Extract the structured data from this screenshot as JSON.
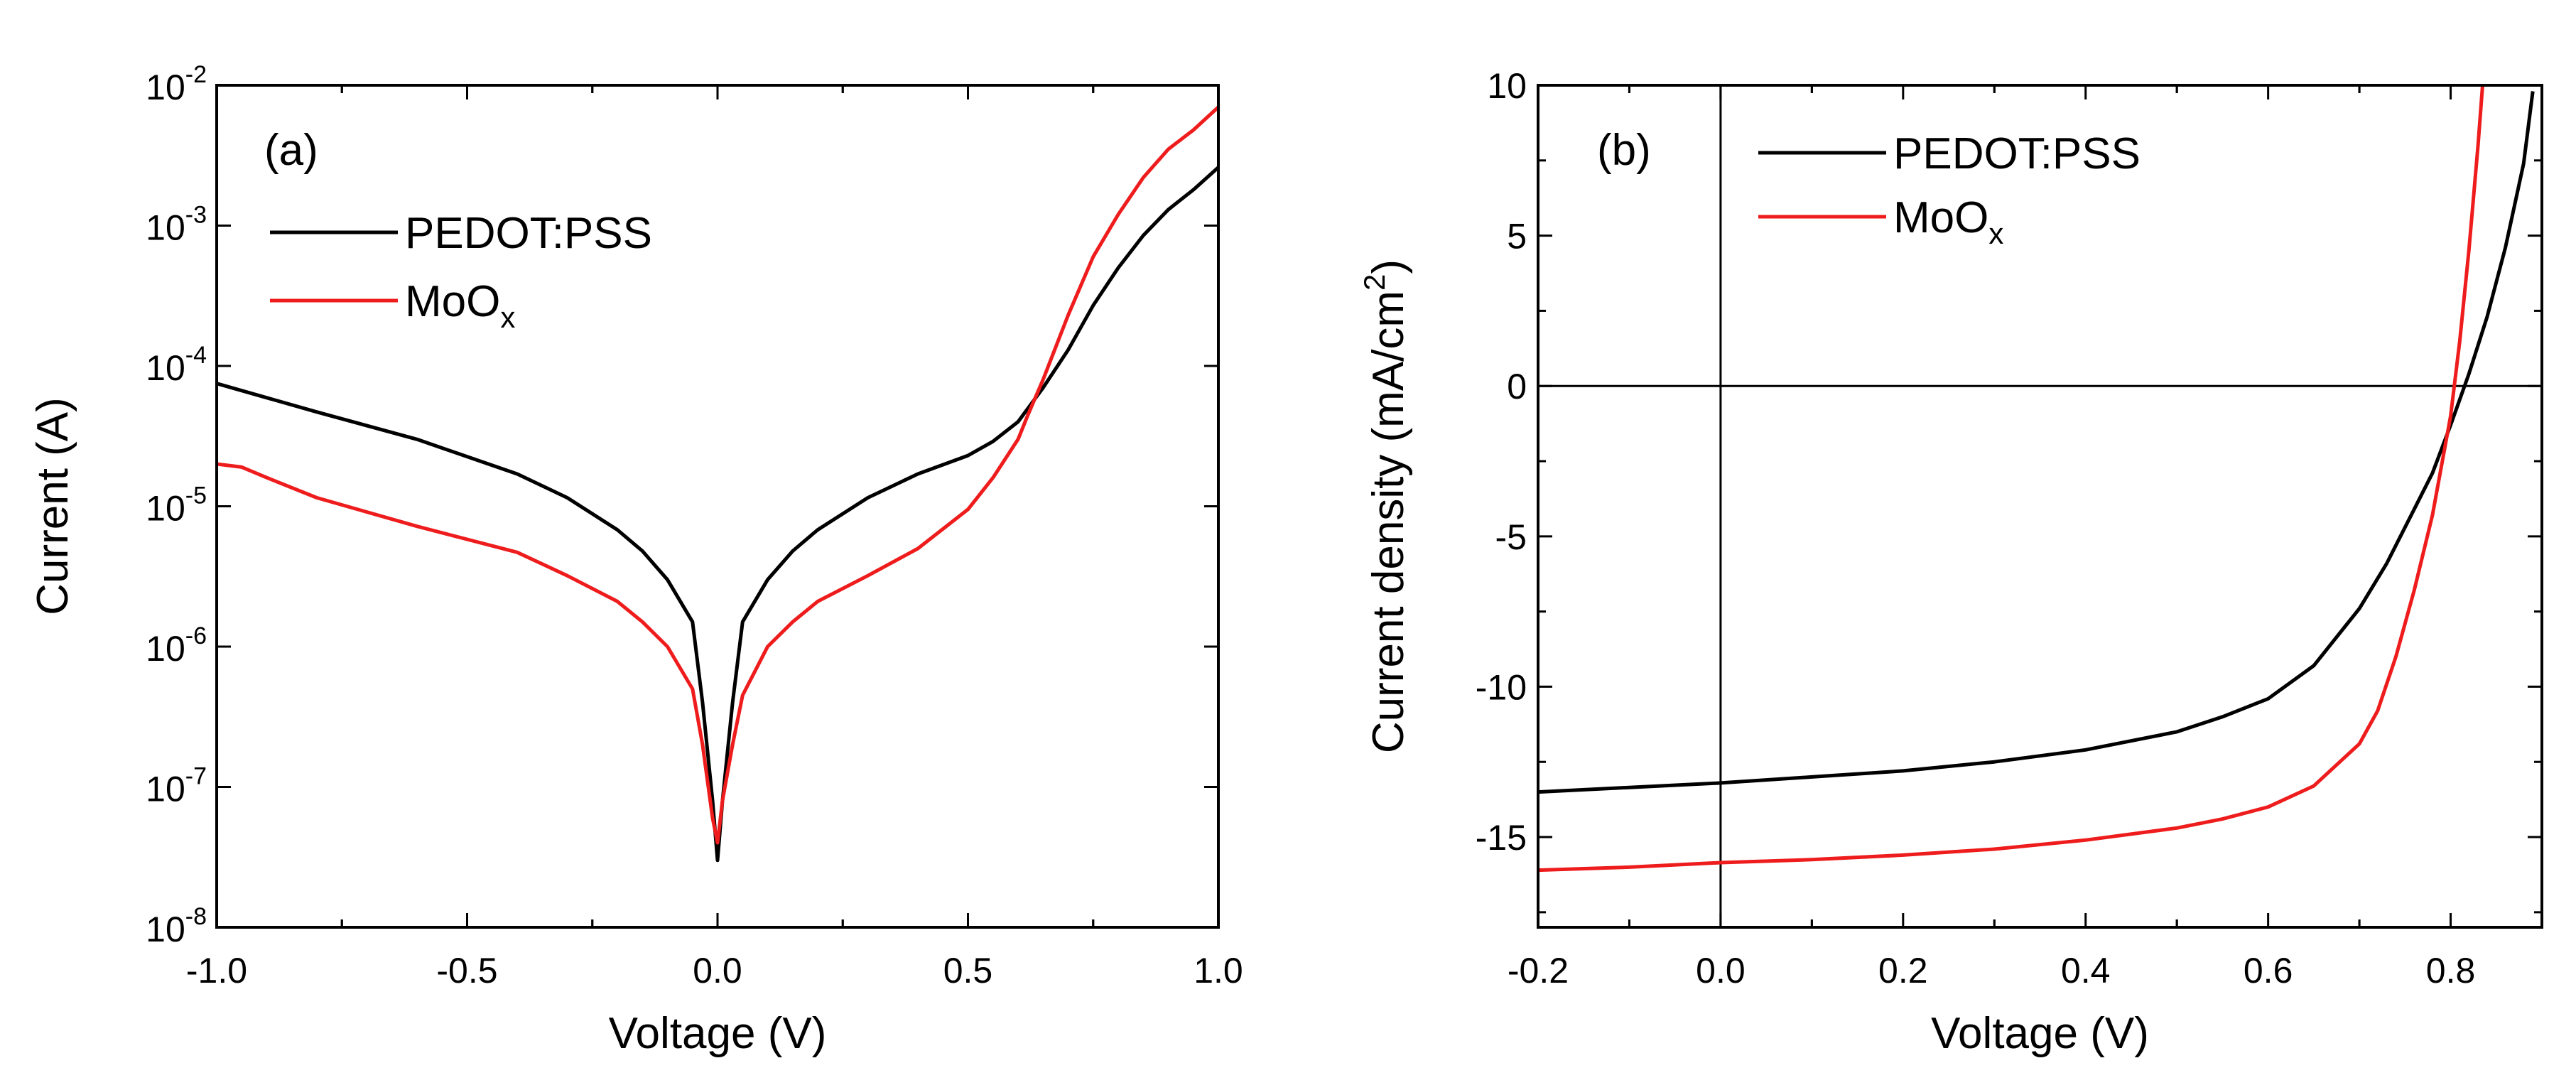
{
  "colors": {
    "pedot": "#000000",
    "moox": "#ee1c1c",
    "axis": "#000000"
  },
  "chart_data": [
    {
      "id": "a",
      "type": "line",
      "panel_label": "(a)",
      "xlabel": "Voltage (V)",
      "ylabel": "Current (A)",
      "yscale": "log",
      "xlim": [
        -1.0,
        1.0
      ],
      "ylim": [
        1e-08,
        0.01
      ],
      "xticks": [
        -1.0,
        -0.5,
        0.0,
        0.5,
        1.0
      ],
      "xtick_labels": [
        "-1.0",
        "-0.5",
        "0.0",
        "0.5",
        "1.0"
      ],
      "yticks": [
        1e-08,
        1e-07,
        1e-06,
        1e-05,
        0.0001,
        0.001,
        0.01
      ],
      "ytick_labels": [
        {
          "base": "10",
          "exp": "-8"
        },
        {
          "base": "10",
          "exp": "-7"
        },
        {
          "base": "10",
          "exp": "-6"
        },
        {
          "base": "10",
          "exp": "-5"
        },
        {
          "base": "10",
          "exp": "-4"
        },
        {
          "base": "10",
          "exp": "-3"
        },
        {
          "base": "10",
          "exp": "-2"
        }
      ],
      "legend_position": "top-left",
      "series": [
        {
          "name": "PEDOT:PSS",
          "legend_main": "PEDOT:PSS",
          "legend_sub": "",
          "color_key": "pedot",
          "x": [
            -1.0,
            -0.8,
            -0.6,
            -0.4,
            -0.3,
            -0.2,
            -0.15,
            -0.1,
            -0.05,
            -0.03,
            -0.01,
            0.0,
            0.01,
            0.03,
            0.05,
            0.1,
            0.15,
            0.2,
            0.3,
            0.4,
            0.5,
            0.55,
            0.6,
            0.62,
            0.65,
            0.7,
            0.75,
            0.8,
            0.85,
            0.9,
            0.95,
            1.0
          ],
          "y": [
            7.5e-05,
            4.7e-05,
            3e-05,
            1.7e-05,
            1.15e-05,
            6.8e-06,
            4.8e-06,
            3e-06,
            1.5e-06,
            4e-07,
            8e-08,
            3e-08,
            8e-08,
            4e-07,
            1.5e-06,
            3e-06,
            4.8e-06,
            6.8e-06,
            1.15e-05,
            1.7e-05,
            2.3e-05,
            2.9e-05,
            4e-05,
            5e-05,
            7e-05,
            0.00013,
            0.00027,
            0.0005,
            0.00085,
            0.0013,
            0.0018,
            0.0026
          ]
        },
        {
          "name": "MoOx",
          "legend_main": "MoO",
          "legend_sub": "x",
          "color_key": "moox",
          "x": [
            -1.0,
            -0.95,
            -0.9,
            -0.8,
            -0.6,
            -0.4,
            -0.3,
            -0.2,
            -0.15,
            -0.1,
            -0.05,
            -0.03,
            -0.01,
            0.0,
            0.01,
            0.03,
            0.05,
            0.1,
            0.15,
            0.2,
            0.3,
            0.4,
            0.5,
            0.55,
            0.6,
            0.62,
            0.65,
            0.7,
            0.75,
            0.8,
            0.85,
            0.9,
            0.95,
            1.0
          ],
          "y": [
            2e-05,
            1.9e-05,
            1.6e-05,
            1.15e-05,
            7.2e-06,
            4.7e-06,
            3.2e-06,
            2.1e-06,
            1.5e-06,
            1e-06,
            5e-07,
            2e-07,
            6e-08,
            4e-08,
            8e-08,
            2e-07,
            4.5e-07,
            1e-06,
            1.5e-06,
            2.1e-06,
            3.2e-06,
            5e-06,
            9.5e-06,
            1.6e-05,
            3e-05,
            4.5e-05,
            8e-05,
            0.00023,
            0.0006,
            0.0012,
            0.0022,
            0.0035,
            0.0048,
            0.007
          ]
        }
      ]
    },
    {
      "id": "b",
      "type": "line",
      "panel_label": "(b)",
      "xlabel": "Voltage (V)",
      "ylabel_main": "Current density (mA/cm",
      "ylabel_sup": "2",
      "ylabel_end": ")",
      "yscale": "linear",
      "xlim": [
        -0.2,
        0.9
      ],
      "ylim": [
        -18,
        10
      ],
      "xticks": [
        -0.2,
        0.0,
        0.2,
        0.4,
        0.6,
        0.8
      ],
      "xtick_labels": [
        "-0.2",
        "0.0",
        "0.2",
        "0.4",
        "0.6",
        "0.8"
      ],
      "yticks": [
        -15,
        -10,
        -5,
        0,
        5,
        10
      ],
      "ytick_labels": [
        "-15",
        "-10",
        "-5",
        "0",
        "5",
        "10"
      ],
      "reference_lines": {
        "x": 0.0,
        "y": 0.0
      },
      "legend_position": "top-left",
      "series": [
        {
          "name": "PEDOT:PSS",
          "legend_main": "PEDOT:PSS",
          "legend_sub": "",
          "color_key": "pedot",
          "x": [
            -0.2,
            -0.1,
            0.0,
            0.1,
            0.2,
            0.3,
            0.4,
            0.5,
            0.55,
            0.6,
            0.65,
            0.7,
            0.73,
            0.76,
            0.78,
            0.8,
            0.82,
            0.84,
            0.86,
            0.88,
            0.89
          ],
          "y": [
            -13.5,
            -13.35,
            -13.2,
            -13.0,
            -12.8,
            -12.5,
            -12.1,
            -11.5,
            -11.0,
            -10.4,
            -9.3,
            -7.4,
            -5.9,
            -4.1,
            -2.9,
            -1.3,
            0.4,
            2.3,
            4.6,
            7.4,
            9.8
          ]
        },
        {
          "name": "MoOx",
          "legend_main": "MoO",
          "legend_sub": "x",
          "color_key": "moox",
          "x": [
            -0.2,
            -0.1,
            0.0,
            0.1,
            0.2,
            0.3,
            0.4,
            0.5,
            0.55,
            0.6,
            0.65,
            0.7,
            0.72,
            0.74,
            0.76,
            0.78,
            0.8,
            0.81,
            0.82,
            0.83,
            0.835
          ],
          "y": [
            -16.1,
            -16.0,
            -15.85,
            -15.75,
            -15.6,
            -15.4,
            -15.1,
            -14.7,
            -14.4,
            -14.0,
            -13.3,
            -11.9,
            -10.8,
            -9.0,
            -6.8,
            -4.3,
            -1.0,
            1.5,
            4.5,
            8.0,
            10.0
          ]
        }
      ]
    }
  ]
}
